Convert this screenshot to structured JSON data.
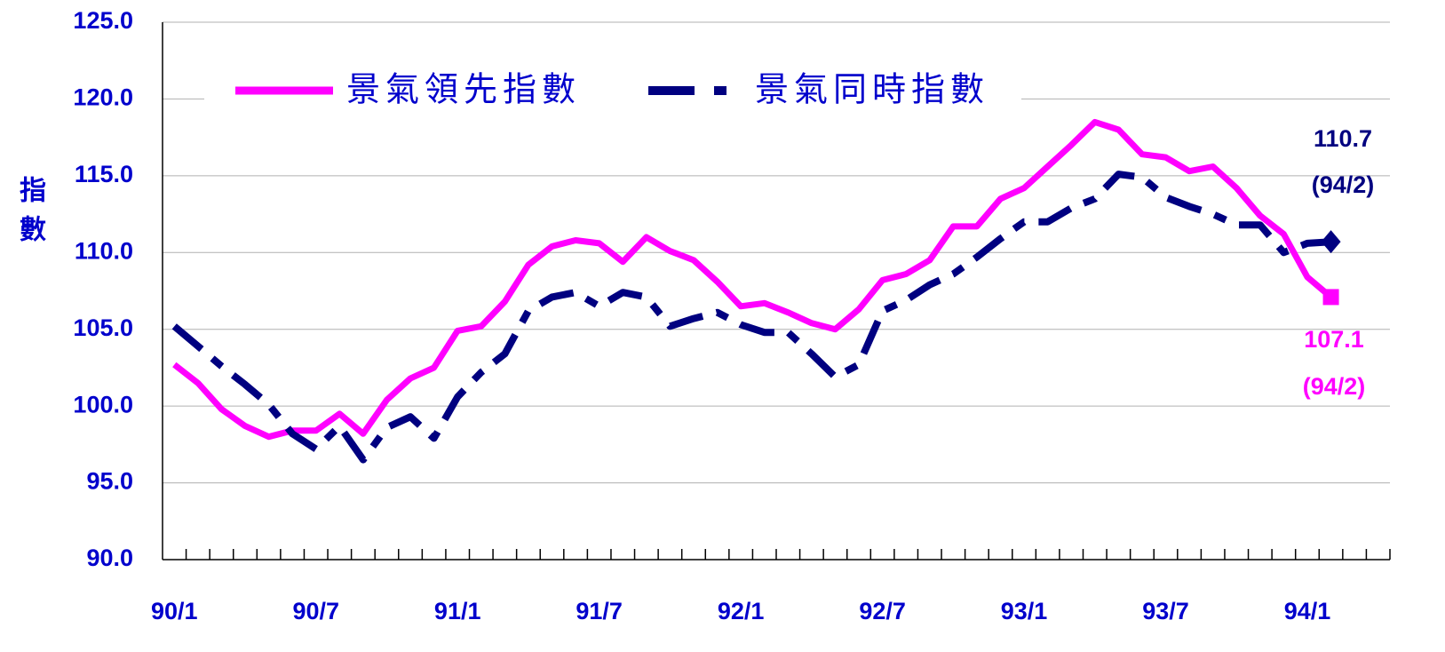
{
  "chart_data": {
    "type": "line",
    "y_label": "指數",
    "categories": [
      "90/1",
      null,
      null,
      null,
      null,
      null,
      "90/7",
      null,
      null,
      null,
      null,
      null,
      "91/1",
      null,
      null,
      null,
      null,
      null,
      "91/7",
      null,
      null,
      null,
      null,
      null,
      "92/1",
      null,
      null,
      null,
      null,
      null,
      "92/7",
      null,
      null,
      null,
      null,
      null,
      "93/1",
      null,
      null,
      null,
      null,
      null,
      "93/7",
      null,
      null,
      null,
      null,
      null,
      "94/1",
      null,
      null,
      null
    ],
    "series": [
      {
        "name": "景氣領先指數",
        "color": "#ff00ff",
        "values": [
          102.7,
          101.5,
          99.8,
          98.7,
          98.0,
          98.4,
          98.4,
          99.5,
          98.2,
          100.4,
          101.8,
          102.5,
          104.9,
          105.2,
          106.8,
          109.2,
          110.4,
          110.8,
          110.6,
          109.4,
          111.0,
          110.1,
          109.5,
          108.1,
          106.5,
          106.7,
          106.1,
          105.4,
          105.0,
          106.3,
          108.2,
          108.6,
          109.5,
          111.7,
          111.7,
          113.5,
          114.2,
          115.6,
          117.0,
          118.5,
          118.0,
          116.4,
          116.2,
          115.3,
          115.6,
          114.2,
          112.4,
          111.2,
          108.4,
          107.1,
          null,
          null
        ]
      },
      {
        "name": "景氣同時指數",
        "color": "#000080",
        "values": [
          105.2,
          103.9,
          102.6,
          101.4,
          100.1,
          98.2,
          97.2,
          98.7,
          96.5,
          98.6,
          99.3,
          97.9,
          100.6,
          102.2,
          103.4,
          106.2,
          107.1,
          107.4,
          106.5,
          107.4,
          107.1,
          105.2,
          105.7,
          106.1,
          105.3,
          104.8,
          104.8,
          103.4,
          101.9,
          102.7,
          106.2,
          106.9,
          107.9,
          108.6,
          109.7,
          110.9,
          112.0,
          112.0,
          112.9,
          113.5,
          115.1,
          114.9,
          113.6,
          113.0,
          112.5,
          111.8,
          111.8,
          110.0,
          110.6,
          110.7,
          null,
          null
        ]
      }
    ],
    "annotations": [
      {
        "value": "110.7",
        "period": "(94/2)",
        "color": "#000080"
      },
      {
        "value": "107.1",
        "period": "(94/2)",
        "color": "#ff00ff"
      }
    ],
    "ylim": [
      90,
      125
    ],
    "yticks": [
      {
        "value": 90,
        "label": "90.0"
      },
      {
        "value": 95,
        "label": "95.0"
      },
      {
        "value": 100,
        "label": "100.0"
      },
      {
        "value": 105,
        "label": "105.0"
      },
      {
        "value": 110,
        "label": "110.0"
      },
      {
        "value": 115,
        "label": "115.0"
      },
      {
        "value": 120,
        "label": "120.0"
      },
      {
        "value": 125,
        "label": "125.0"
      }
    ],
    "grid": true
  }
}
